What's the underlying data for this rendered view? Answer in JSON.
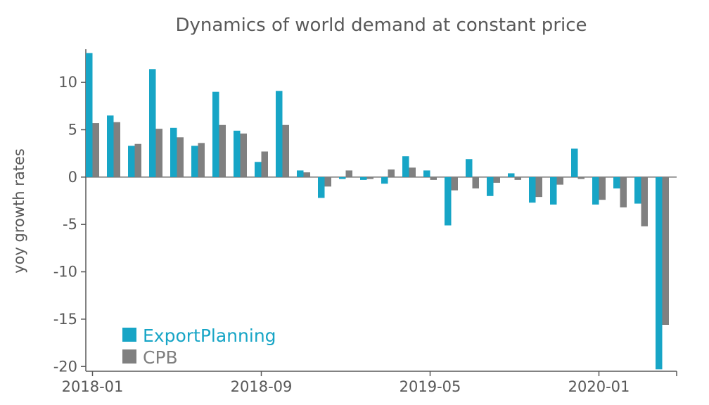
{
  "chart_data": {
    "type": "bar",
    "title": "Dynamics of world demand at constant price",
    "xlabel": "",
    "ylabel": "yoy growth rates",
    "ylim": [
      -20.5,
      13.5
    ],
    "yticks": [
      10,
      5,
      0,
      -5,
      -10,
      -15,
      -20
    ],
    "ytick_labels": [
      "10",
      "5",
      "0",
      "-5",
      "-10",
      "-15",
      "-20"
    ],
    "categories": [
      "2018-01",
      "2018-02",
      "2018-03",
      "2018-04",
      "2018-05",
      "2018-06",
      "2018-07",
      "2018-08",
      "2018-09",
      "2018-10",
      "2018-11",
      "2018-12",
      "2019-01",
      "2019-02",
      "2019-03",
      "2019-04",
      "2019-05",
      "2019-06",
      "2019-07",
      "2019-08",
      "2019-09",
      "2019-10",
      "2019-11",
      "2019-12",
      "2020-01",
      "2020-02",
      "2020-03",
      "2020-04"
    ],
    "xtick_labels": [
      "2018-01",
      "2018-09",
      "2019-05",
      "2020-01"
    ],
    "legend_position": "bottom-left",
    "series": [
      {
        "name": "ExportPlanning",
        "color": "#17a5c6",
        "values": [
          13.1,
          6.5,
          3.3,
          11.4,
          5.2,
          3.3,
          9.0,
          4.9,
          1.6,
          9.1,
          0.7,
          -2.2,
          -0.2,
          -0.3,
          -0.7,
          2.2,
          0.7,
          -5.1,
          1.9,
          -2.0,
          0.4,
          -2.7,
          -2.9,
          3.0,
          -2.9,
          -1.2,
          -2.8,
          -20.3
        ]
      },
      {
        "name": "CPB",
        "color": "#808080",
        "values": [
          5.7,
          5.8,
          3.5,
          5.1,
          4.2,
          3.6,
          5.5,
          4.6,
          2.7,
          5.5,
          0.5,
          -1.0,
          0.7,
          -0.2,
          0.8,
          1.0,
          -0.3,
          -1.4,
          -1.2,
          -0.6,
          -0.3,
          -2.1,
          -0.8,
          -0.2,
          -2.4,
          -3.2,
          -5.2,
          -15.6
        ]
      }
    ]
  }
}
